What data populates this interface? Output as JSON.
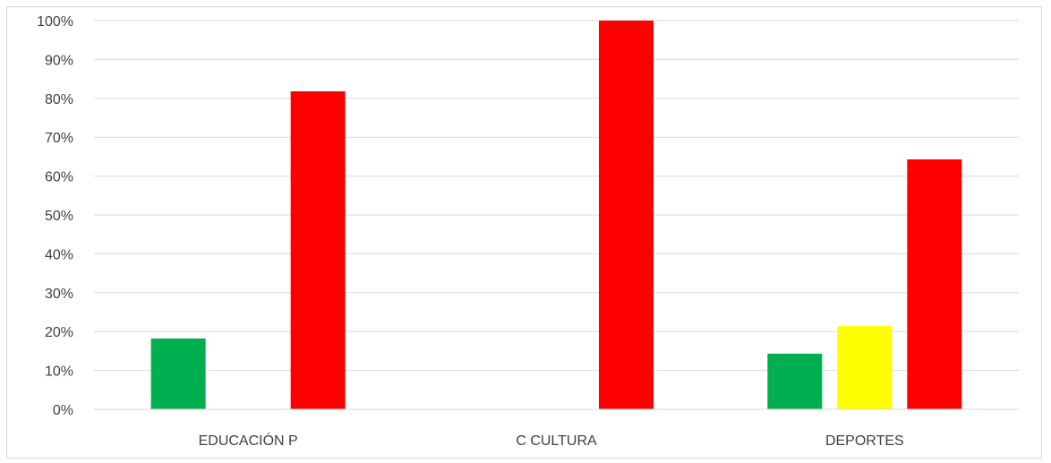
{
  "chart_data": {
    "type": "bar",
    "categories": [
      "EDUCACIÓN P",
      "C CULTURA",
      "DEPORTES"
    ],
    "series": [
      {
        "color": "#00b050",
        "values": [
          18.2,
          0,
          14.3
        ]
      },
      {
        "color": "#ffff00",
        "values": [
          0,
          0,
          21.4
        ]
      },
      {
        "color": "#ff0000",
        "values": [
          81.8,
          100,
          64.3
        ]
      }
    ],
    "ylim": [
      0,
      100
    ],
    "yticks": [
      "0%",
      "10%",
      "20%",
      "30%",
      "40%",
      "50%",
      "60%",
      "70%",
      "80%",
      "90%",
      "100%"
    ],
    "grid": true,
    "legend": "none",
    "gridline_color": "#d9d9d9",
    "axis_text_color": "#404040"
  }
}
